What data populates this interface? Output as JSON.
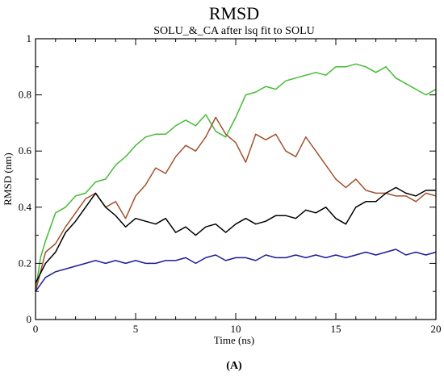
{
  "chart_data": {
    "type": "line",
    "title": "RMSD",
    "subtitle": "SOLU_&_CA after lsq fit to SOLU",
    "xlabel": "Time (ns)",
    "ylabel": "RMSD (nm)",
    "panel_label": "(A)",
    "xlim": [
      0,
      20
    ],
    "ylim": [
      0,
      1
    ],
    "x_ticks": [
      0,
      5,
      10,
      15,
      20
    ],
    "y_ticks": [
      0,
      0.2,
      0.4,
      0.6,
      0.8,
      1
    ],
    "x_tick_labels": [
      "0",
      "5",
      "10",
      "15",
      "20"
    ],
    "y_tick_labels": [
      "0",
      "0.2",
      "0.4",
      "0.6",
      "0.8",
      "1"
    ],
    "grid": false,
    "legend": "none",
    "series": [
      {
        "color": "#44bb33",
        "x": [
          0,
          0.25,
          0.5,
          1,
          1.5,
          2,
          2.5,
          3,
          3.5,
          4,
          4.5,
          5,
          5.5,
          6,
          6.5,
          7,
          7.5,
          8,
          8.5,
          9,
          9.5,
          10,
          10.5,
          11,
          11.5,
          12,
          12.5,
          13,
          13.5,
          14,
          14.5,
          15,
          15.5,
          16,
          16.5,
          17,
          17.5,
          18,
          18.5,
          19,
          19.5,
          20
        ],
        "values": [
          0.1,
          0.22,
          0.28,
          0.38,
          0.4,
          0.44,
          0.45,
          0.49,
          0.5,
          0.55,
          0.58,
          0.62,
          0.65,
          0.66,
          0.66,
          0.69,
          0.71,
          0.69,
          0.73,
          0.67,
          0.65,
          0.72,
          0.8,
          0.81,
          0.83,
          0.82,
          0.85,
          0.86,
          0.87,
          0.88,
          0.87,
          0.9,
          0.9,
          0.91,
          0.9,
          0.88,
          0.9,
          0.86,
          0.84,
          0.82,
          0.8,
          0.82
        ]
      },
      {
        "color": "#a0522d",
        "x": [
          0,
          0.5,
          1,
          1.5,
          2,
          2.5,
          3,
          3.5,
          4,
          4.5,
          5,
          5.5,
          6,
          6.5,
          7,
          7.5,
          8,
          8.5,
          9,
          9.5,
          10,
          10.5,
          11,
          11.5,
          12,
          12.5,
          13,
          13.5,
          14,
          14.5,
          15,
          15.5,
          16,
          16.5,
          17,
          17.5,
          18,
          18.5,
          19,
          19.5,
          20
        ],
        "values": [
          0.1,
          0.24,
          0.27,
          0.33,
          0.38,
          0.43,
          0.45,
          0.4,
          0.42,
          0.36,
          0.44,
          0.48,
          0.54,
          0.52,
          0.58,
          0.62,
          0.6,
          0.65,
          0.72,
          0.66,
          0.63,
          0.56,
          0.66,
          0.64,
          0.66,
          0.6,
          0.58,
          0.65,
          0.6,
          0.55,
          0.5,
          0.47,
          0.5,
          0.46,
          0.45,
          0.45,
          0.44,
          0.44,
          0.42,
          0.45,
          0.44
        ]
      },
      {
        "color": "#000000",
        "x": [
          0,
          0.5,
          1,
          1.5,
          2,
          2.5,
          3,
          3.5,
          4,
          4.5,
          5,
          5.5,
          6,
          6.5,
          7,
          7.5,
          8,
          8.5,
          9,
          9.5,
          10,
          10.5,
          11,
          11.5,
          12,
          12.5,
          13,
          13.5,
          14,
          14.5,
          15,
          15.5,
          16,
          16.5,
          17,
          17.5,
          18,
          18.5,
          19,
          19.5,
          20
        ],
        "values": [
          0.13,
          0.2,
          0.24,
          0.31,
          0.35,
          0.4,
          0.45,
          0.4,
          0.37,
          0.33,
          0.36,
          0.35,
          0.34,
          0.36,
          0.31,
          0.33,
          0.3,
          0.33,
          0.34,
          0.31,
          0.34,
          0.36,
          0.34,
          0.35,
          0.37,
          0.37,
          0.36,
          0.39,
          0.38,
          0.4,
          0.36,
          0.34,
          0.4,
          0.42,
          0.42,
          0.45,
          0.47,
          0.45,
          0.44,
          0.46,
          0.46
        ]
      },
      {
        "color": "#1c1c9a",
        "x": [
          0,
          0.5,
          1,
          1.5,
          2,
          2.5,
          3,
          3.5,
          4,
          4.5,
          5,
          5.5,
          6,
          6.5,
          7,
          7.5,
          8,
          8.5,
          9,
          9.5,
          10,
          10.5,
          11,
          11.5,
          12,
          12.5,
          13,
          13.5,
          14,
          14.5,
          15,
          15.5,
          16,
          16.5,
          17,
          17.5,
          18,
          18.5,
          19,
          19.5,
          20
        ],
        "values": [
          0.1,
          0.15,
          0.17,
          0.18,
          0.19,
          0.2,
          0.21,
          0.2,
          0.21,
          0.2,
          0.21,
          0.2,
          0.2,
          0.21,
          0.21,
          0.22,
          0.2,
          0.22,
          0.23,
          0.21,
          0.22,
          0.22,
          0.21,
          0.23,
          0.22,
          0.22,
          0.23,
          0.22,
          0.23,
          0.22,
          0.23,
          0.22,
          0.23,
          0.24,
          0.23,
          0.24,
          0.25,
          0.23,
          0.24,
          0.23,
          0.24
        ]
      }
    ]
  }
}
